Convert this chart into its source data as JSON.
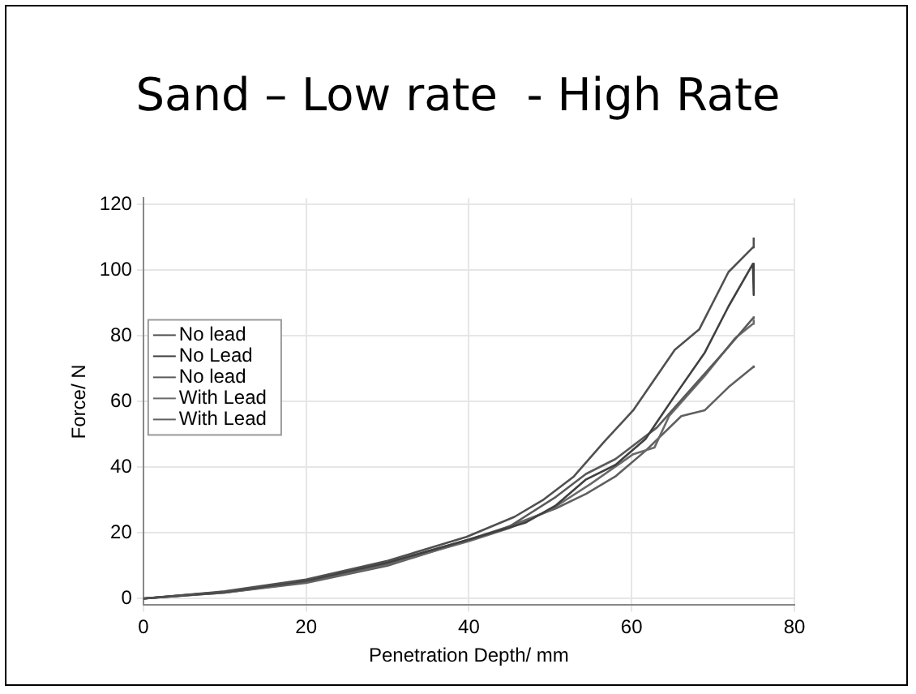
{
  "chart_data": {
    "type": "line",
    "title": "Sand – Low rate  - High Rate",
    "xlabel": "Penetration Depth/ mm",
    "ylabel": "Force/ N",
    "xlim": [
      0,
      80
    ],
    "xticks": [
      0,
      20,
      40,
      60,
      80
    ],
    "ylim": [
      -2,
      122
    ],
    "yticks": [
      0,
      20,
      40,
      60,
      80,
      100,
      120
    ],
    "grid": true,
    "legend": "left",
    "marker": "none",
    "line_style": "solid",
    "series": [
      {
        "name": "No lead",
        "color": "#505050",
        "x": [
          0,
          10,
          20,
          30,
          39.7,
          45.6,
          49.2,
          52.9,
          56.6,
          60.2,
          65.3,
          68.3,
          71.9,
          74.9,
          75
        ],
        "values": [
          0,
          2.2,
          5.8,
          11.5,
          18.8,
          24.9,
          30.2,
          37.2,
          47.7,
          57.4,
          75.8,
          82,
          99.5,
          107,
          110
        ]
      },
      {
        "name": "No Lead",
        "color": "#404040",
        "x": [
          0,
          10,
          20,
          30,
          40,
          47,
          50.7,
          54.4,
          58,
          61.7,
          65.3,
          69,
          71.9,
          74.9,
          75
        ],
        "values": [
          0,
          2,
          5.5,
          11,
          18,
          23.2,
          28.4,
          36.3,
          40.7,
          48.6,
          61.8,
          75,
          89,
          102,
          92.5
        ]
      },
      {
        "name": "No lead",
        "color": "#5a5a5a",
        "x": [
          0,
          10,
          20,
          30,
          40,
          45,
          50.7,
          54.4,
          58,
          63.1,
          67.5,
          71.9,
          74.9,
          75
        ],
        "values": [
          0,
          2,
          5.2,
          10.8,
          18,
          22,
          31,
          38,
          42.5,
          52.1,
          64.4,
          76.7,
          85.4,
          86
        ]
      },
      {
        "name": "With Lead",
        "color": "#6a6a6a",
        "x": [
          0,
          10,
          20,
          30,
          40,
          45,
          50,
          55,
          60.2,
          62.8,
          64.6,
          69,
          72.7,
          74.9,
          75
        ],
        "values": [
          0,
          1.8,
          5,
          10.5,
          17.5,
          21.5,
          27,
          35,
          44,
          46,
          55.6,
          67.9,
          79.3,
          83.7,
          85
        ]
      },
      {
        "name": "With Lead",
        "color": "#606060",
        "x": [
          0,
          10,
          20,
          30,
          43.4,
          50.7,
          54.4,
          58,
          61.7,
          66.1,
          69,
          71.9,
          74.9,
          75
        ],
        "values": [
          0,
          1.8,
          4.8,
          10,
          20.5,
          27.5,
          31.9,
          37.2,
          45,
          55.6,
          57.4,
          64.4,
          70.5,
          71
        ]
      }
    ]
  }
}
